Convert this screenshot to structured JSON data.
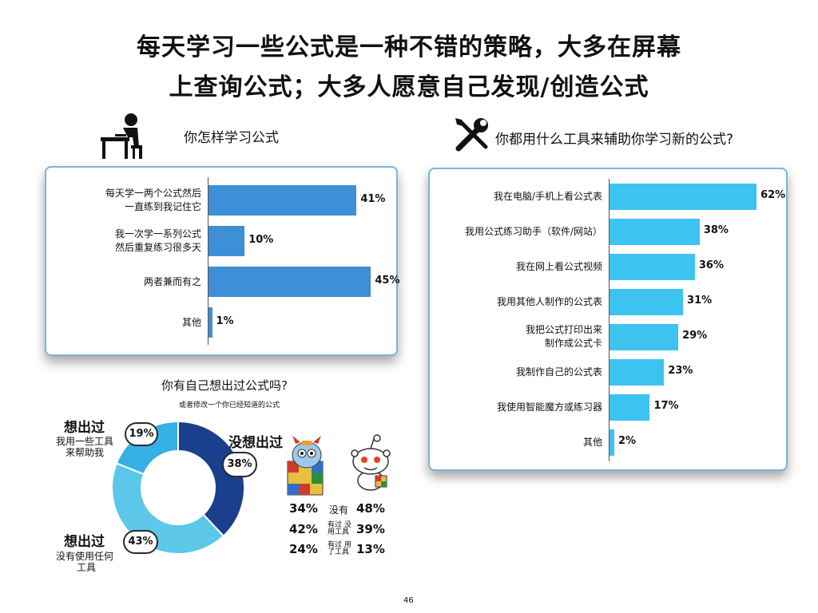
{
  "title": {
    "line1": "每天学习一些公式是一种不错的策略，大多在屏幕",
    "line2": "上查询公式；大多人愿意自己发现/创造公式"
  },
  "left_chart": {
    "title": "你怎样学习公式",
    "icon": "person-at-desk-icon"
  },
  "right_chart": {
    "title": "你都用什么工具来辅助你学习新的公式?",
    "icon": "tools-icon"
  },
  "donut": {
    "title": "你有自己想出过公式吗?",
    "subtitle": "或者修改一个你已经知道的公式",
    "label_top_left": {
      "head": "想出过",
      "body1": "我用一些工具",
      "body2": "来帮助我",
      "pct": "19%"
    },
    "label_bottom_left": {
      "head": "想出过",
      "body1": "没有使用任何",
      "body2": "工具",
      "pct": "43%"
    },
    "label_right": {
      "head": "没想出过",
      "pct": "38%"
    }
  },
  "comparison": {
    "icons": [
      "rubiks-cube-mascot-icon",
      "reddit-mascot-icon"
    ],
    "rows": [
      {
        "left": "34%",
        "label": "没有",
        "right": "48%"
      },
      {
        "left": "42%",
        "label": "有过 没用工具",
        "right": "39%"
      },
      {
        "left": "24%",
        "label": "有过 用了工具",
        "right": "13%"
      }
    ]
  },
  "page_number": "46",
  "colors": {
    "bar_left": "#3d8fd6",
    "bar_right": "#3cc3f0",
    "donut_dark": "#1a3f8c",
    "donut_light": "#5cc7e8",
    "donut_mid": "#35b0e6",
    "panel_border": "#7ab4de"
  },
  "chart_data": [
    {
      "type": "bar",
      "title": "你怎样学习公式",
      "categories": [
        "每天学一两个公式然后 一直练到我记住它",
        "我一次学一系列公式 然后重复练习很多天",
        "两者兼而有之",
        "其他"
      ],
      "values": [
        41,
        10,
        45,
        1
      ],
      "value_labels": [
        "41%",
        "10%",
        "45%",
        "1%"
      ],
      "xlim": [
        0,
        50
      ]
    },
    {
      "type": "bar",
      "title": "你都用什么工具来辅助你学习新的公式?",
      "categories": [
        "我在电脑/手机上看公式表",
        "我用公式练习助手（软件/网站）",
        "我在网上看公式视频",
        "我用其他人制作的公式表",
        "我把公式打印出来 制作成公式卡",
        "我制作自己的公式表",
        "我使用智能魔方或练习器",
        "其他"
      ],
      "values": [
        62,
        38,
        36,
        31,
        29,
        23,
        17,
        2
      ],
      "value_labels": [
        "62%",
        "38%",
        "36%",
        "31%",
        "29%",
        "23%",
        "17%",
        "2%"
      ],
      "xlim": [
        0,
        65
      ]
    },
    {
      "type": "pie",
      "title": "你有自己想出过公式吗?",
      "labels": [
        "没想出过",
        "想出过 没有使用任何工具",
        "想出过 我用一些工具来帮助我"
      ],
      "values": [
        38,
        43,
        19
      ]
    }
  ]
}
